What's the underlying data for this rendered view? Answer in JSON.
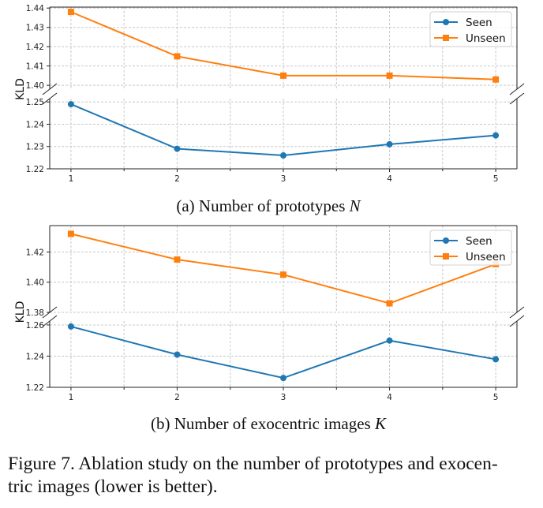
{
  "chart_data": [
    {
      "type": "line",
      "id": "a",
      "title": "",
      "subcaption_prefix": "(a) Number of prototypes ",
      "subcaption_var": "N",
      "xlabel": "",
      "ylabel": "KLD",
      "x": [
        1,
        2,
        3,
        4,
        5
      ],
      "x_ticks": [
        "1",
        "2",
        "3",
        "4",
        "5"
      ],
      "xlim": [
        0.8,
        5.2
      ],
      "broken_y_axis": true,
      "upper_ylim": [
        1.398,
        1.4405
      ],
      "upper_yticks": [
        "1.40",
        "1.41",
        "1.42",
        "1.43",
        "1.44"
      ],
      "lower_ylim": [
        1.22,
        1.2515
      ],
      "lower_yticks": [
        "1.22",
        "1.23",
        "1.24",
        "1.25"
      ],
      "grid": true,
      "legend_position": "top-right",
      "series": [
        {
          "name": "Seen",
          "color": "#1f77b4",
          "marker": "circle",
          "values": [
            1.249,
            1.229,
            1.226,
            1.231,
            1.235
          ]
        },
        {
          "name": "Unseen",
          "color": "#ff7f0e",
          "marker": "square",
          "values": [
            1.438,
            1.415,
            1.405,
            1.405,
            1.403
          ]
        }
      ]
    },
    {
      "type": "line",
      "id": "b",
      "title": "",
      "subcaption_prefix": "(b) Number of exocentric images ",
      "subcaption_var": "K",
      "xlabel": "",
      "ylabel": "KLD",
      "x": [
        1,
        2,
        3,
        4,
        5
      ],
      "x_ticks": [
        "1",
        "2",
        "3",
        "4",
        "5"
      ],
      "xlim": [
        0.8,
        5.2
      ],
      "broken_y_axis": true,
      "upper_ylim": [
        1.38,
        1.4375
      ],
      "upper_yticks": [
        "1.38",
        "1.40",
        "1.42"
      ],
      "lower_ylim": [
        1.22,
        1.2625
      ],
      "lower_yticks": [
        "1.22",
        "1.24",
        "1.26"
      ],
      "grid": true,
      "legend_position": "top-right",
      "series": [
        {
          "name": "Seen",
          "color": "#1f77b4",
          "marker": "circle",
          "values": [
            1.259,
            1.241,
            1.226,
            1.25,
            1.238
          ]
        },
        {
          "name": "Unseen",
          "color": "#ff7f0e",
          "marker": "square",
          "values": [
            1.432,
            1.415,
            1.405,
            1.386,
            1.412
          ]
        }
      ]
    }
  ],
  "figure_caption": "Figure 7. Ablation study on the number of prototypes and exocentric images (lower is better).",
  "figure_caption_lines": [
    "Figure 7. Ablation study on the number of prototypes and exocen-",
    "tric images (lower is better)."
  ]
}
